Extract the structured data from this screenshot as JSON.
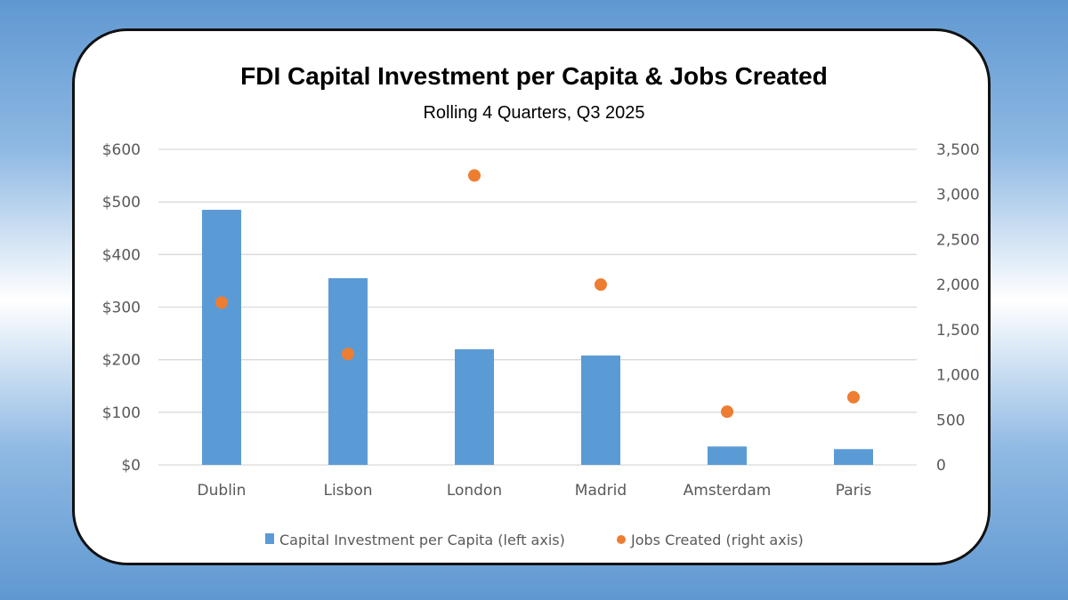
{
  "chart_data": {
    "type": "bar",
    "title": "FDI Capital Investment per Capita & Jobs Created",
    "subtitle": "Rolling 4 Quarters, Q3 2025",
    "categories": [
      "Dublin",
      "Lisbon",
      "London",
      "Madrid",
      "Amsterdam",
      "Paris"
    ],
    "series": [
      {
        "name": "Capital Investment per Capita (left axis)",
        "type": "bar",
        "axis": "left",
        "color": "#5b9bd5",
        "values": [
          485,
          355,
          220,
          208,
          35,
          30
        ]
      },
      {
        "name": "Jobs Created (right axis)",
        "type": "scatter",
        "axis": "right",
        "color": "#ed7d31",
        "values": [
          1800,
          1230,
          3210,
          2000,
          590,
          750
        ]
      }
    ],
    "y_left": {
      "lim": [
        0,
        600
      ],
      "ticks": [
        0,
        100,
        200,
        300,
        400,
        500,
        600
      ],
      "tick_labels": [
        "$0",
        "$100",
        "$200",
        "$300",
        "$400",
        "$500",
        "$600"
      ]
    },
    "y_right": {
      "lim": [
        0,
        3500
      ],
      "ticks": [
        0,
        500,
        1000,
        1500,
        2000,
        2500,
        3000,
        3500
      ],
      "tick_labels": [
        "0",
        "500",
        "1,000",
        "1,500",
        "2,000",
        "2,500",
        "3,000",
        "3,500"
      ]
    },
    "grid": true,
    "legend": "bottom",
    "gridline_color": "#d9d9d9"
  }
}
